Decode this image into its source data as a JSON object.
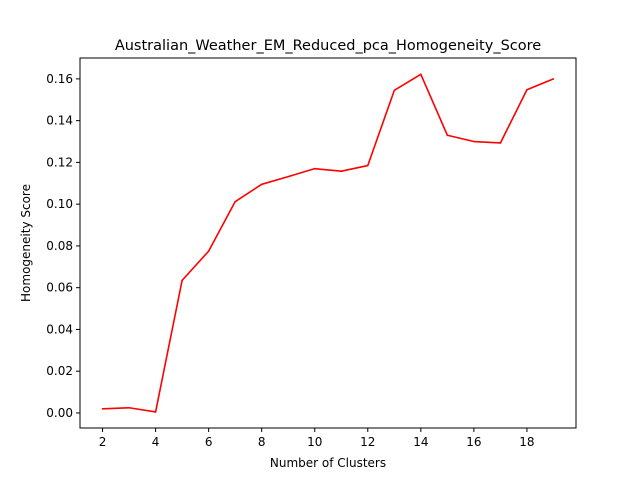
{
  "chart_data": {
    "type": "line",
    "title": "Australian_Weather_EM_Reduced_pca_Homogeneity_Score",
    "xlabel": "Number of Clusters",
    "ylabel": "Homogeneity Score",
    "xlim": [
      1.15,
      19.85
    ],
    "ylim": [
      -0.0072,
      0.17
    ],
    "xticks": [
      2,
      4,
      6,
      8,
      10,
      12,
      14,
      16,
      18
    ],
    "yticks": [
      0.0,
      0.02,
      0.04,
      0.06,
      0.08,
      0.1,
      0.12,
      0.14,
      0.16
    ],
    "xtick_labels": [
      "2",
      "4",
      "6",
      "8",
      "10",
      "12",
      "14",
      "16",
      "18"
    ],
    "ytick_labels": [
      "0.00",
      "0.02",
      "0.04",
      "0.06",
      "0.08",
      "0.10",
      "0.12",
      "0.14",
      "0.16"
    ],
    "grid": false,
    "series": [
      {
        "color": "#ff0000",
        "x": [
          2,
          3,
          4,
          5,
          6,
          7,
          8,
          9,
          10,
          11,
          12,
          13,
          14,
          15,
          16,
          17,
          18,
          19
        ],
        "values": [
          0.002,
          0.0025,
          0.0005,
          0.0635,
          0.0775,
          0.1012,
          0.1095,
          0.1132,
          0.117,
          0.1158,
          0.1185,
          0.1545,
          0.1622,
          0.133,
          0.13,
          0.1293,
          0.1548,
          0.16
        ]
      }
    ]
  }
}
